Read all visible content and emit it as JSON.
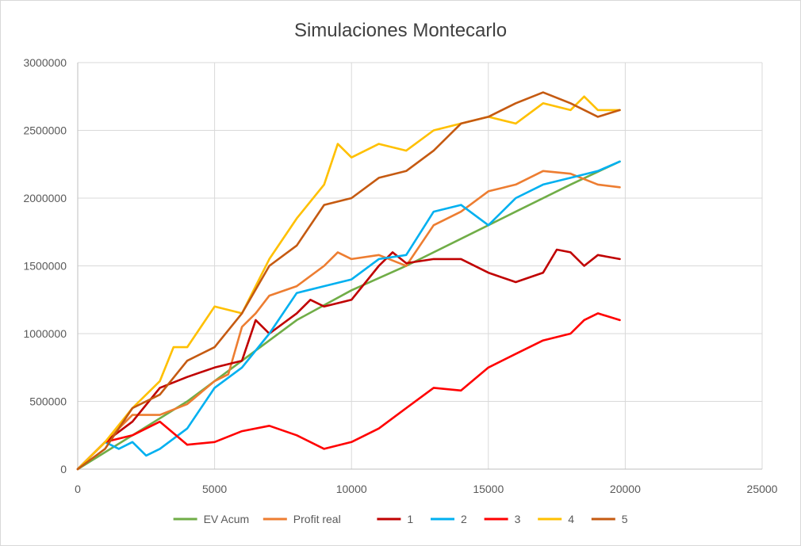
{
  "chart_data": {
    "type": "line",
    "title": "Simulaciones Montecarlo",
    "xlabel": "",
    "ylabel": "",
    "xlim": [
      0,
      25000
    ],
    "ylim": [
      0,
      3000000
    ],
    "x_ticks": [
      0,
      5000,
      10000,
      15000,
      20000,
      25000
    ],
    "y_ticks": [
      0,
      500000,
      1000000,
      1500000,
      2000000,
      2500000,
      3000000
    ],
    "x_tick_labels": [
      "0",
      "5000",
      "10000",
      "15000",
      "20000",
      "25000"
    ],
    "y_tick_labels": [
      "0",
      "500000",
      "1000000",
      "1500000",
      "2000000",
      "2500000",
      "3000000"
    ],
    "grid": true,
    "legend_position": "bottom",
    "series": [
      {
        "name": "EV Acum",
        "color": "#70ad47",
        "points": [
          [
            0,
            0
          ],
          [
            2000,
            250000
          ],
          [
            4000,
            500000
          ],
          [
            6000,
            800000
          ],
          [
            8000,
            1100000
          ],
          [
            10000,
            1320000
          ],
          [
            12000,
            1500000
          ],
          [
            14000,
            1700000
          ],
          [
            16000,
            1900000
          ],
          [
            18000,
            2100000
          ],
          [
            19800,
            2270000
          ]
        ]
      },
      {
        "name": "Profit real",
        "color": "#ed7d31",
        "points": [
          [
            0,
            0
          ],
          [
            1000,
            200000
          ],
          [
            2000,
            400000
          ],
          [
            3000,
            400000
          ],
          [
            4000,
            480000
          ],
          [
            5000,
            650000
          ],
          [
            5500,
            700000
          ],
          [
            6000,
            1050000
          ],
          [
            6500,
            1150000
          ],
          [
            7000,
            1280000
          ],
          [
            8000,
            1350000
          ],
          [
            9000,
            1500000
          ],
          [
            9500,
            1600000
          ],
          [
            10000,
            1550000
          ],
          [
            11000,
            1580000
          ],
          [
            12000,
            1500000
          ],
          [
            13000,
            1800000
          ],
          [
            14000,
            1900000
          ],
          [
            15000,
            2050000
          ],
          [
            16000,
            2100000
          ],
          [
            17000,
            2200000
          ],
          [
            18000,
            2180000
          ],
          [
            19000,
            2100000
          ],
          [
            19800,
            2080000
          ]
        ]
      },
      {
        "name": "1",
        "color": "#c00000",
        "points": [
          [
            0,
            0
          ],
          [
            1000,
            200000
          ],
          [
            2000,
            350000
          ],
          [
            3000,
            600000
          ],
          [
            4000,
            680000
          ],
          [
            5000,
            750000
          ],
          [
            6000,
            800000
          ],
          [
            6500,
            1100000
          ],
          [
            7000,
            1000000
          ],
          [
            8000,
            1150000
          ],
          [
            8500,
            1250000
          ],
          [
            9000,
            1200000
          ],
          [
            10000,
            1250000
          ],
          [
            11000,
            1500000
          ],
          [
            11500,
            1600000
          ],
          [
            12000,
            1520000
          ],
          [
            13000,
            1550000
          ],
          [
            14000,
            1550000
          ],
          [
            15000,
            1450000
          ],
          [
            16000,
            1380000
          ],
          [
            17000,
            1450000
          ],
          [
            17500,
            1620000
          ],
          [
            18000,
            1600000
          ],
          [
            18500,
            1500000
          ],
          [
            19000,
            1580000
          ],
          [
            19800,
            1550000
          ]
        ]
      },
      {
        "name": "2",
        "color": "#00b0f0",
        "points": [
          [
            0,
            0
          ],
          [
            1000,
            200000
          ],
          [
            1500,
            150000
          ],
          [
            2000,
            200000
          ],
          [
            2500,
            100000
          ],
          [
            3000,
            150000
          ],
          [
            4000,
            300000
          ],
          [
            5000,
            600000
          ],
          [
            6000,
            750000
          ],
          [
            7000,
            1000000
          ],
          [
            8000,
            1300000
          ],
          [
            9000,
            1350000
          ],
          [
            10000,
            1400000
          ],
          [
            11000,
            1550000
          ],
          [
            12000,
            1580000
          ],
          [
            13000,
            1900000
          ],
          [
            14000,
            1950000
          ],
          [
            15000,
            1800000
          ],
          [
            16000,
            2000000
          ],
          [
            17000,
            2100000
          ],
          [
            18000,
            2150000
          ],
          [
            19000,
            2200000
          ],
          [
            19800,
            2270000
          ]
        ]
      },
      {
        "name": "3",
        "color": "#ff0000",
        "points": [
          [
            0,
            0
          ],
          [
            1000,
            200000
          ],
          [
            2000,
            250000
          ],
          [
            3000,
            350000
          ],
          [
            4000,
            180000
          ],
          [
            5000,
            200000
          ],
          [
            6000,
            280000
          ],
          [
            7000,
            320000
          ],
          [
            8000,
            250000
          ],
          [
            9000,
            150000
          ],
          [
            10000,
            200000
          ],
          [
            11000,
            300000
          ],
          [
            12000,
            450000
          ],
          [
            13000,
            600000
          ],
          [
            14000,
            580000
          ],
          [
            15000,
            750000
          ],
          [
            16000,
            850000
          ],
          [
            17000,
            950000
          ],
          [
            18000,
            1000000
          ],
          [
            18500,
            1100000
          ],
          [
            19000,
            1150000
          ],
          [
            19800,
            1100000
          ]
        ]
      },
      {
        "name": "4",
        "color": "#ffc000",
        "points": [
          [
            0,
            0
          ],
          [
            1000,
            200000
          ],
          [
            2000,
            450000
          ],
          [
            3000,
            650000
          ],
          [
            3500,
            900000
          ],
          [
            4000,
            900000
          ],
          [
            5000,
            1200000
          ],
          [
            6000,
            1150000
          ],
          [
            6500,
            1350000
          ],
          [
            7000,
            1550000
          ],
          [
            8000,
            1850000
          ],
          [
            9000,
            2100000
          ],
          [
            9500,
            2400000
          ],
          [
            10000,
            2300000
          ],
          [
            11000,
            2400000
          ],
          [
            12000,
            2350000
          ],
          [
            13000,
            2500000
          ],
          [
            14000,
            2550000
          ],
          [
            15000,
            2600000
          ],
          [
            16000,
            2550000
          ],
          [
            17000,
            2700000
          ],
          [
            18000,
            2650000
          ],
          [
            18500,
            2750000
          ],
          [
            19000,
            2650000
          ],
          [
            19800,
            2650000
          ]
        ]
      },
      {
        "name": "5",
        "color": "#c55a11",
        "points": [
          [
            0,
            0
          ],
          [
            1000,
            150000
          ],
          [
            2000,
            450000
          ],
          [
            3000,
            550000
          ],
          [
            4000,
            800000
          ],
          [
            5000,
            900000
          ],
          [
            6000,
            1150000
          ],
          [
            7000,
            1500000
          ],
          [
            8000,
            1650000
          ],
          [
            9000,
            1950000
          ],
          [
            10000,
            2000000
          ],
          [
            11000,
            2150000
          ],
          [
            12000,
            2200000
          ],
          [
            13000,
            2350000
          ],
          [
            14000,
            2550000
          ],
          [
            15000,
            2600000
          ],
          [
            16000,
            2700000
          ],
          [
            17000,
            2780000
          ],
          [
            18000,
            2700000
          ],
          [
            19000,
            2600000
          ],
          [
            19800,
            2650000
          ]
        ]
      }
    ]
  }
}
